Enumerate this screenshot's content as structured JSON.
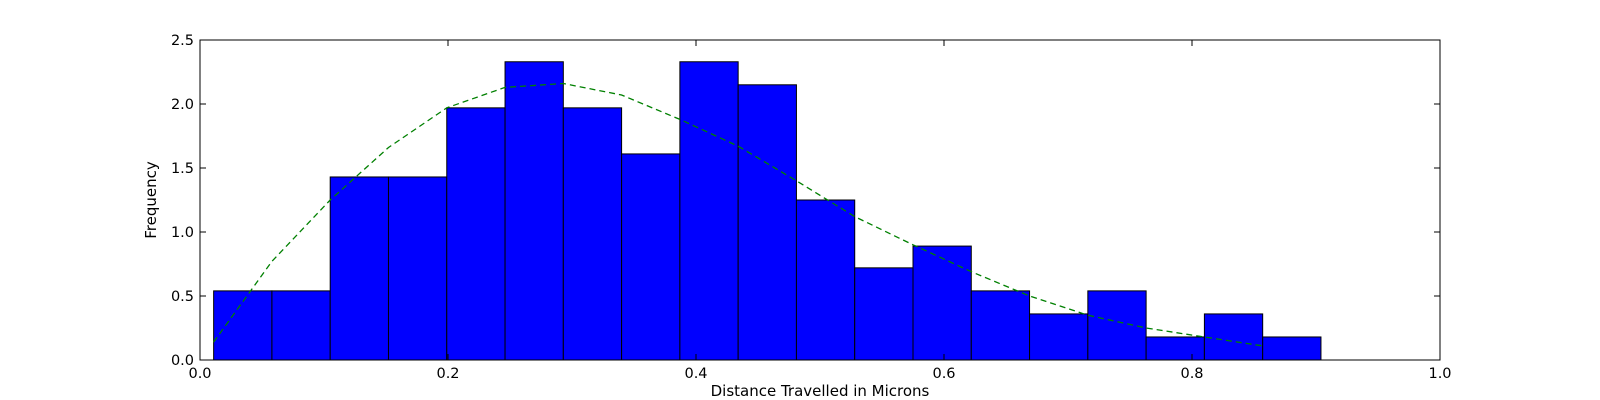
{
  "chart_data": {
    "type": "bar",
    "xlabel": "Distance Travelled in Microns",
    "ylabel": "Frequency",
    "xlim": [
      0.0,
      1.0
    ],
    "ylim": [
      0.0,
      2.5
    ],
    "xticks": [
      "0.0",
      "0.2",
      "0.4",
      "0.6",
      "0.8",
      "1.0"
    ],
    "yticks": [
      "0.0",
      "0.5",
      "1.0",
      "1.5",
      "2.0",
      "2.5"
    ],
    "bar_color": "#0000ff",
    "bar_edge_color": "#000000",
    "histogram": {
      "bin_edges": [
        0.011,
        0.058,
        0.105,
        0.152,
        0.199,
        0.246,
        0.293,
        0.34,
        0.387,
        0.434,
        0.481,
        0.528,
        0.575,
        0.622,
        0.669,
        0.716,
        0.763,
        0.81,
        0.857,
        0.904
      ],
      "values": [
        0.54,
        0.54,
        1.43,
        1.43,
        1.97,
        2.33,
        1.97,
        1.61,
        2.33,
        2.15,
        1.25,
        0.72,
        0.89,
        0.54,
        0.36,
        0.54,
        0.18,
        0.36,
        0.18
      ]
    },
    "fit_curve": {
      "style": "dashed",
      "color": "#008000",
      "x": [
        0.011,
        0.058,
        0.105,
        0.152,
        0.199,
        0.246,
        0.293,
        0.34,
        0.387,
        0.434,
        0.481,
        0.528,
        0.575,
        0.622,
        0.669,
        0.716,
        0.763,
        0.81,
        0.857
      ],
      "y": [
        0.14,
        0.77,
        1.25,
        1.66,
        1.97,
        2.13,
        2.16,
        2.07,
        1.88,
        1.67,
        1.4,
        1.12,
        0.9,
        0.69,
        0.5,
        0.35,
        0.25,
        0.18,
        0.11
      ]
    }
  }
}
